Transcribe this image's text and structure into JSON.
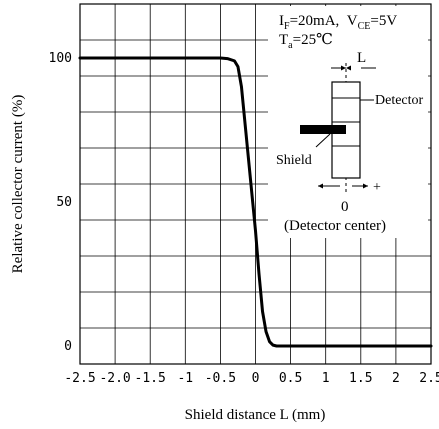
{
  "chart_data": {
    "type": "line",
    "title": "",
    "xlabel": "Shield distance L (mm)",
    "ylabel": "Relative collector current (%)",
    "xlim": [
      -2.5,
      2.5
    ],
    "ylim": [
      -6.25,
      118.75
    ],
    "x_ticks": [
      "-2.5",
      "-2.0",
      "-1.5",
      "-1",
      "-0.5",
      "0",
      "0.5",
      "1",
      "1.5",
      "2",
      "2.5"
    ],
    "x_tick_values": [
      -2.5,
      -2.0,
      -1.5,
      -1.0,
      -0.5,
      0,
      0.5,
      1.0,
      1.5,
      2.0,
      2.5
    ],
    "y_ticks": [
      "0",
      "50",
      "100"
    ],
    "y_tick_values": [
      0,
      50,
      100
    ],
    "grid": true,
    "series": [
      {
        "x": [
          -2.5,
          -0.5,
          -0.4,
          -0.3,
          -0.25,
          -0.2,
          -0.1,
          0.0,
          0.05,
          0.1,
          0.15,
          0.2,
          0.25,
          0.3,
          2.5
        ],
        "y": [
          100,
          100,
          99.8,
          99,
          97,
          90,
          65,
          40,
          25,
          12,
          5,
          1.5,
          0.3,
          0,
          0
        ]
      }
    ],
    "conditions": {
      "line1": {
        "i": "I",
        "i_sub": "F",
        "i_val": "=20mA,",
        "v": "V",
        "v_sub": "CE",
        "v_val": "=5V"
      },
      "line2": {
        "t": "T",
        "t_sub": "a",
        "t_val": "=25℃"
      }
    },
    "inset": {
      "l_label": "L",
      "detector_label": "Detector",
      "shield_label": "Shield",
      "minus": "−",
      "plus": "+",
      "zero": "0",
      "center_label": "(Detector center)"
    }
  }
}
